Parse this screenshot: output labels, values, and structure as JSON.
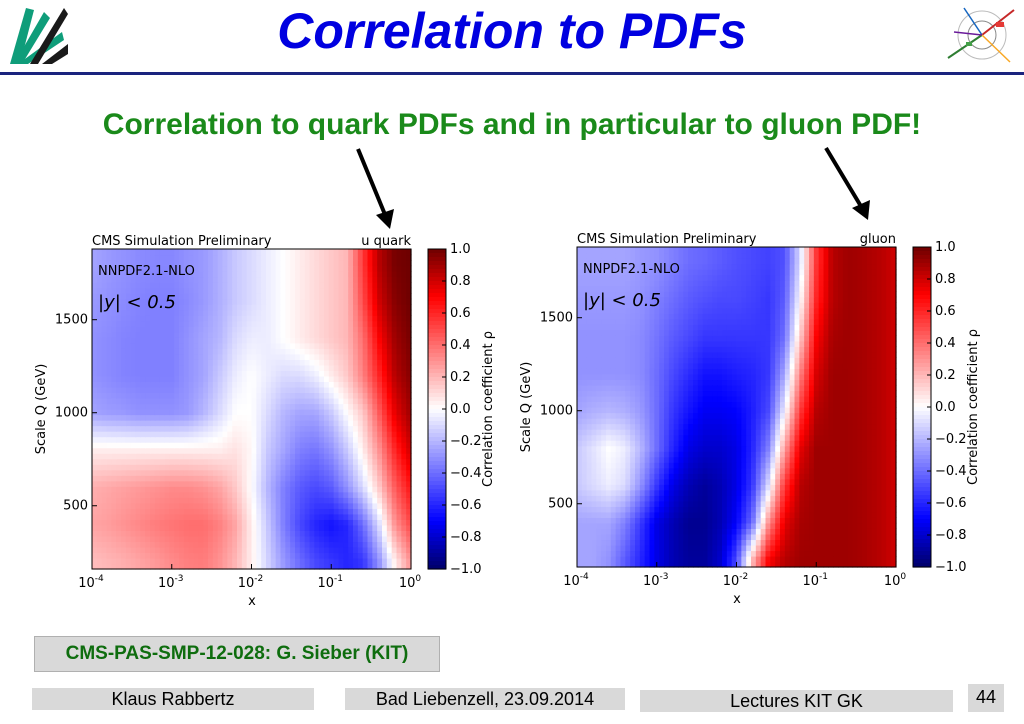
{
  "slide": {
    "title": "Correlation to PDFs",
    "subtitle": "Correlation to quark PDFs and in particular to gluon PDF!",
    "reference": "CMS-PAS-SMP-12-028: G. Sieber (KIT)",
    "footer": {
      "author": "Klaus Rabbertz",
      "venue": "Bad Liebenzell, 23.09.2014",
      "event": "Lectures KIT GK",
      "page": "44"
    },
    "logo_left_icon": "kit-logo-icon",
    "logo_right_icon": "particle-event-display-icon",
    "colors": {
      "title": "#0000e0",
      "subtitle": "#1a8a1a",
      "rule": "#1a237e",
      "footer_bg": "#d9d9d9"
    }
  },
  "chart_data": [
    {
      "type": "heatmap",
      "header_left": "CMS Simulation Preliminary",
      "header_right": "u quark",
      "pdf_label": "NNPDF2.1-NLO",
      "rapidity_label": "|y| < 0.5",
      "xlabel": "x",
      "ylabel": "Scale Q (GeV)",
      "xscale": "log",
      "xlim": [
        0.0001,
        1
      ],
      "ylim": [
        160,
        1880
      ],
      "xticks": [
        {
          "base": "10",
          "exp": "-4"
        },
        {
          "base": "10",
          "exp": "-3"
        },
        {
          "base": "10",
          "exp": "-2"
        },
        {
          "base": "10",
          "exp": "-1"
        },
        {
          "base": "10",
          "exp": "0"
        }
      ],
      "yticks": [
        "500",
        "1000",
        "1500"
      ],
      "colorbar": {
        "label": "Correlation coefficient ρ",
        "range": [
          -1,
          1
        ],
        "ticks": [
          "1.0",
          "0.8",
          "0.6",
          "0.4",
          "0.2",
          "0.0",
          "−0.2",
          "−0.4",
          "−0.6",
          "−0.8",
          "−1.0"
        ]
      },
      "grid": {
        "x_log10": [
          -4.0,
          -3.8,
          -3.6,
          -3.4,
          -3.2,
          -3.0,
          -2.8,
          -2.6,
          -2.4,
          -2.2,
          -2.0,
          -1.8,
          -1.6,
          -1.4,
          -1.2,
          -1.0,
          -0.8,
          -0.6,
          -0.4,
          -0.2,
          0.0
        ],
        "Q": [
          200,
          400,
          600,
          800,
          1000,
          1200,
          1400,
          1600,
          1800
        ],
        "values": [
          [
            0.18,
            0.2,
            0.22,
            0.25,
            0.28,
            0.32,
            0.35,
            0.36,
            0.3,
            0.2,
            0.05,
            -0.12,
            -0.28,
            -0.4,
            -0.5,
            -0.55,
            -0.6,
            -0.55,
            -0.3,
            0.05,
            0.3
          ],
          [
            0.25,
            0.27,
            0.3,
            0.33,
            0.36,
            0.38,
            0.4,
            0.4,
            0.35,
            0.25,
            0.05,
            -0.15,
            -0.35,
            -0.5,
            -0.6,
            -0.65,
            -0.6,
            -0.4,
            -0.1,
            0.3,
            0.5
          ],
          [
            0.22,
            0.24,
            0.26,
            0.28,
            0.3,
            0.32,
            0.32,
            0.3,
            0.25,
            0.15,
            0.0,
            -0.2,
            -0.35,
            -0.45,
            -0.5,
            -0.45,
            -0.3,
            -0.1,
            0.15,
            0.45,
            0.65
          ],
          [
            0.05,
            0.05,
            0.05,
            0.05,
            0.05,
            0.05,
            0.05,
            0.05,
            0.05,
            0.08,
            0.02,
            -0.15,
            -0.25,
            -0.35,
            -0.38,
            -0.3,
            -0.15,
            0.05,
            0.3,
            0.6,
            0.8
          ],
          [
            -0.25,
            -0.27,
            -0.28,
            -0.3,
            -0.3,
            -0.3,
            -0.28,
            -0.2,
            -0.1,
            0.0,
            0.0,
            -0.1,
            -0.2,
            -0.25,
            -0.25,
            -0.15,
            0.0,
            0.15,
            0.45,
            0.75,
            0.9
          ],
          [
            -0.3,
            -0.32,
            -0.34,
            -0.35,
            -0.35,
            -0.35,
            -0.3,
            -0.25,
            -0.15,
            -0.05,
            0.0,
            -0.05,
            -0.1,
            -0.1,
            -0.05,
            0.05,
            0.15,
            0.35,
            0.6,
            0.85,
            0.95
          ],
          [
            -0.3,
            -0.32,
            -0.34,
            -0.35,
            -0.35,
            -0.35,
            -0.3,
            -0.25,
            -0.2,
            -0.1,
            -0.05,
            -0.05,
            0.0,
            0.05,
            0.1,
            0.15,
            0.2,
            0.4,
            0.7,
            0.9,
            0.98
          ],
          [
            -0.28,
            -0.3,
            -0.32,
            -0.34,
            -0.35,
            -0.35,
            -0.32,
            -0.28,
            -0.22,
            -0.15,
            -0.1,
            -0.05,
            0.0,
            0.05,
            0.1,
            0.15,
            0.2,
            0.5,
            0.8,
            0.95,
            1.0
          ],
          [
            -0.25,
            -0.28,
            -0.3,
            -0.32,
            -0.33,
            -0.33,
            -0.3,
            -0.28,
            -0.22,
            -0.15,
            -0.1,
            -0.05,
            0.0,
            0.05,
            0.1,
            0.15,
            0.2,
            0.55,
            0.85,
            0.98,
            1.0
          ]
        ]
      }
    },
    {
      "type": "heatmap",
      "header_left": "CMS Simulation Preliminary",
      "header_right": "gluon",
      "pdf_label": "NNPDF2.1-NLO",
      "rapidity_label": "|y| < 0.5",
      "xlabel": "x",
      "ylabel": "Scale Q (GeV)",
      "xscale": "log",
      "xlim": [
        0.0001,
        1
      ],
      "ylim": [
        160,
        1880
      ],
      "xticks": [
        {
          "base": "10",
          "exp": "-4"
        },
        {
          "base": "10",
          "exp": "-3"
        },
        {
          "base": "10",
          "exp": "-2"
        },
        {
          "base": "10",
          "exp": "-1"
        },
        {
          "base": "10",
          "exp": "0"
        }
      ],
      "yticks": [
        "500",
        "1000",
        "1500"
      ],
      "colorbar": {
        "label": "Correlation coefficient ρ",
        "range": [
          -1,
          1
        ],
        "ticks": [
          "1.0",
          "0.8",
          "0.6",
          "0.4",
          "0.2",
          "0.0",
          "−0.2",
          "−0.4",
          "−0.6",
          "−0.8",
          "−1.0"
        ]
      },
      "grid": {
        "x_log10": [
          -4.0,
          -3.8,
          -3.6,
          -3.4,
          -3.2,
          -3.0,
          -2.8,
          -2.6,
          -2.4,
          -2.2,
          -2.0,
          -1.8,
          -1.6,
          -1.4,
          -1.2,
          -1.0,
          -0.8,
          -0.6,
          -0.4,
          -0.2,
          0.0
        ],
        "Q": [
          200,
          400,
          600,
          800,
          1000,
          1200,
          1400,
          1600,
          1800
        ],
        "values": [
          [
            -0.25,
            -0.25,
            -0.3,
            -0.45,
            -0.6,
            -0.75,
            -0.85,
            -0.9,
            -0.9,
            -0.8,
            -0.5,
            0.2,
            0.7,
            0.85,
            0.9,
            0.9,
            0.9,
            0.9,
            0.88,
            0.85,
            0.8
          ],
          [
            -0.25,
            -0.25,
            -0.25,
            -0.35,
            -0.55,
            -0.75,
            -0.85,
            -0.92,
            -0.92,
            -0.85,
            -0.7,
            -0.4,
            0.3,
            0.75,
            0.88,
            0.9,
            0.9,
            0.9,
            0.88,
            0.85,
            0.8
          ],
          [
            -0.15,
            -0.1,
            -0.05,
            -0.1,
            -0.3,
            -0.55,
            -0.75,
            -0.85,
            -0.9,
            -0.85,
            -0.75,
            -0.55,
            -0.1,
            0.55,
            0.85,
            0.9,
            0.9,
            0.9,
            0.88,
            0.85,
            0.8
          ],
          [
            -0.15,
            -0.08,
            0.0,
            -0.05,
            -0.2,
            -0.4,
            -0.6,
            -0.75,
            -0.8,
            -0.8,
            -0.75,
            -0.6,
            -0.35,
            0.25,
            0.75,
            0.9,
            0.9,
            0.9,
            0.88,
            0.85,
            0.8
          ],
          [
            -0.25,
            -0.22,
            -0.2,
            -0.22,
            -0.28,
            -0.4,
            -0.55,
            -0.65,
            -0.72,
            -0.72,
            -0.7,
            -0.62,
            -0.5,
            -0.05,
            0.55,
            0.85,
            0.9,
            0.9,
            0.88,
            0.85,
            0.8
          ],
          [
            -0.3,
            -0.3,
            -0.3,
            -0.3,
            -0.32,
            -0.4,
            -0.5,
            -0.58,
            -0.65,
            -0.65,
            -0.62,
            -0.6,
            -0.55,
            -0.25,
            0.35,
            0.78,
            0.9,
            0.9,
            0.88,
            0.85,
            0.8
          ],
          [
            -0.3,
            -0.3,
            -0.3,
            -0.3,
            -0.32,
            -0.38,
            -0.45,
            -0.5,
            -0.55,
            -0.55,
            -0.55,
            -0.55,
            -0.55,
            -0.4,
            0.15,
            0.7,
            0.88,
            0.9,
            0.88,
            0.85,
            0.8
          ],
          [
            -0.28,
            -0.28,
            -0.28,
            -0.28,
            -0.3,
            -0.35,
            -0.4,
            -0.45,
            -0.48,
            -0.5,
            -0.5,
            -0.52,
            -0.55,
            -0.45,
            0.0,
            0.6,
            0.85,
            0.9,
            0.88,
            0.85,
            0.8
          ],
          [
            -0.25,
            -0.25,
            -0.25,
            -0.25,
            -0.28,
            -0.3,
            -0.35,
            -0.4,
            -0.42,
            -0.45,
            -0.48,
            -0.5,
            -0.52,
            -0.48,
            -0.1,
            0.55,
            0.85,
            0.9,
            0.88,
            0.85,
            0.8
          ]
        ]
      }
    }
  ]
}
